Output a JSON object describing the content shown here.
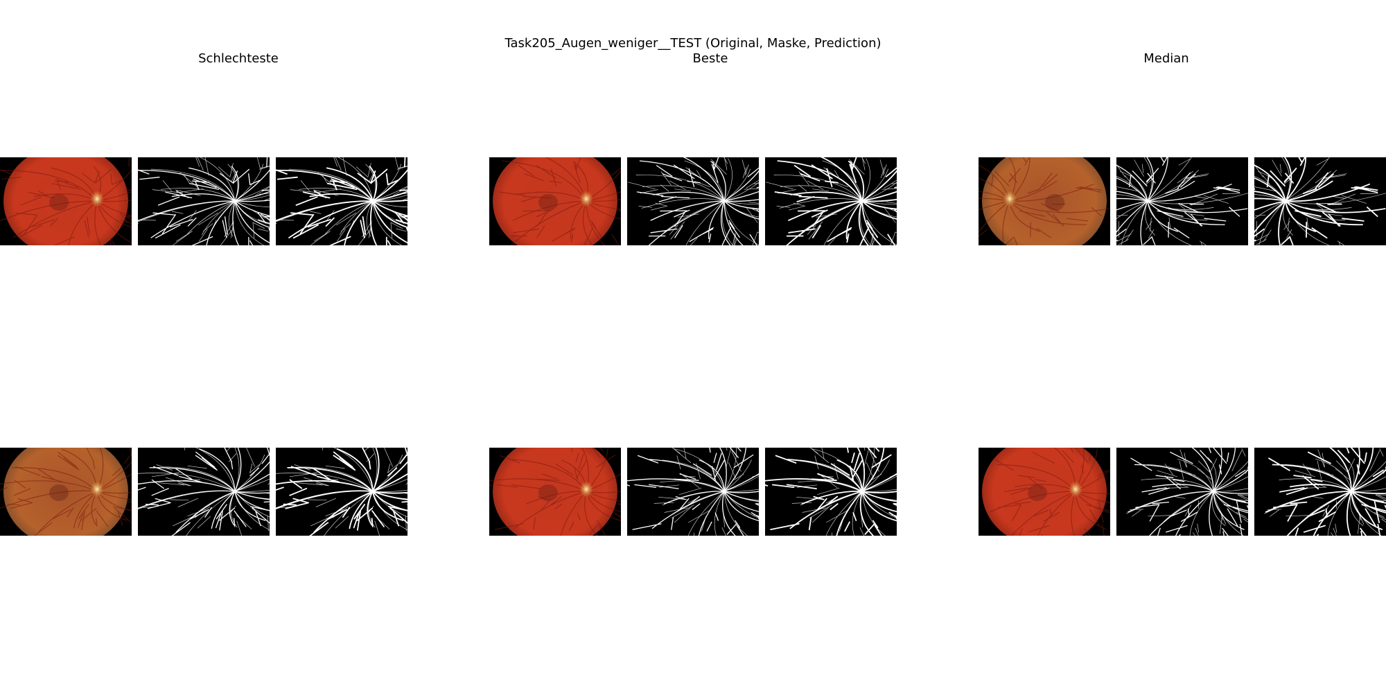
{
  "figure": {
    "suptitle": "Task205_Augen_weniger__TEST (Original, Maske, Prediction)",
    "columns": [
      {
        "title": "Schlechteste"
      },
      {
        "title": "Beste"
      },
      {
        "title": "Median"
      }
    ],
    "panel_order": [
      "Original",
      "Maske",
      "Prediction"
    ],
    "colors": {
      "background": "#ffffff",
      "image_background": "#000000",
      "fundus_red": "#c8381e",
      "fundus_orange": "#b5622c",
      "vessel_white": "#ffffff"
    }
  }
}
